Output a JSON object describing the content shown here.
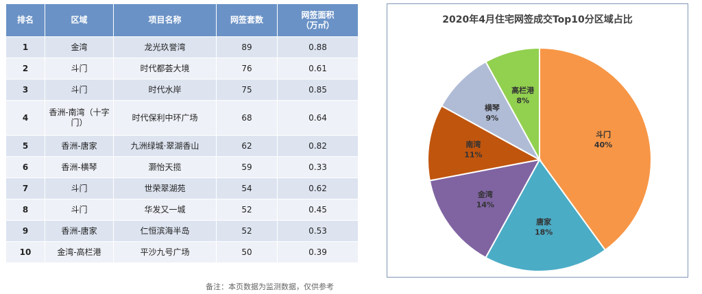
{
  "table": {
    "headers": [
      "排名",
      "区域",
      "项目名称",
      "网签套数",
      "网签面积\n（万㎡）"
    ],
    "rows": [
      [
        "1",
        "金湾",
        "龙光玖誉湾",
        "89",
        "0.88"
      ],
      [
        "2",
        "斗门",
        "时代都荟大境",
        "76",
        "0.61"
      ],
      [
        "3",
        "斗门",
        "时代水岸",
        "75",
        "0.85"
      ],
      [
        "4",
        "香洲-南湾（十字门）",
        "时代保利中环广场",
        "68",
        "0.64"
      ],
      [
        "5",
        "香洲-唐家",
        "九洲绿城·翠湖香山",
        "62",
        "0.82"
      ],
      [
        "6",
        "香洲-横琴",
        "灏怡天揽",
        "59",
        "0.33"
      ],
      [
        "7",
        "斗门",
        "世荣翠湖苑",
        "54",
        "0.62"
      ],
      [
        "8",
        "斗门",
        "华发又一城",
        "52",
        "0.45"
      ],
      [
        "9",
        "香洲-唐家",
        "仁恒滨海半岛",
        "52",
        "0.53"
      ],
      [
        "10",
        "金湾-高栏港",
        "平沙九号广场",
        "50",
        "0.39"
      ]
    ]
  },
  "note": "备注：本页数据为监测数据，仅供参考",
  "chart_data": {
    "type": "pie",
    "title": "2020年4月住宅网签成交Top10分区域占比",
    "slices": [
      {
        "label": "斗门",
        "value": 40,
        "text": "40%",
        "color": "#f79646"
      },
      {
        "label": "唐家",
        "value": 18,
        "text": "18%",
        "color": "#4bacc6"
      },
      {
        "label": "金湾",
        "value": 14,
        "text": "14%",
        "color": "#8064a2"
      },
      {
        "label": "南湾",
        "value": 11,
        "text": "11%",
        "color": "#c0550e"
      },
      {
        "label": "横琴",
        "value": 9,
        "text": "9%",
        "color": "#b0bcd6"
      },
      {
        "label": "高栏港",
        "value": 8,
        "text": "8%",
        "color": "#92d050"
      }
    ]
  }
}
